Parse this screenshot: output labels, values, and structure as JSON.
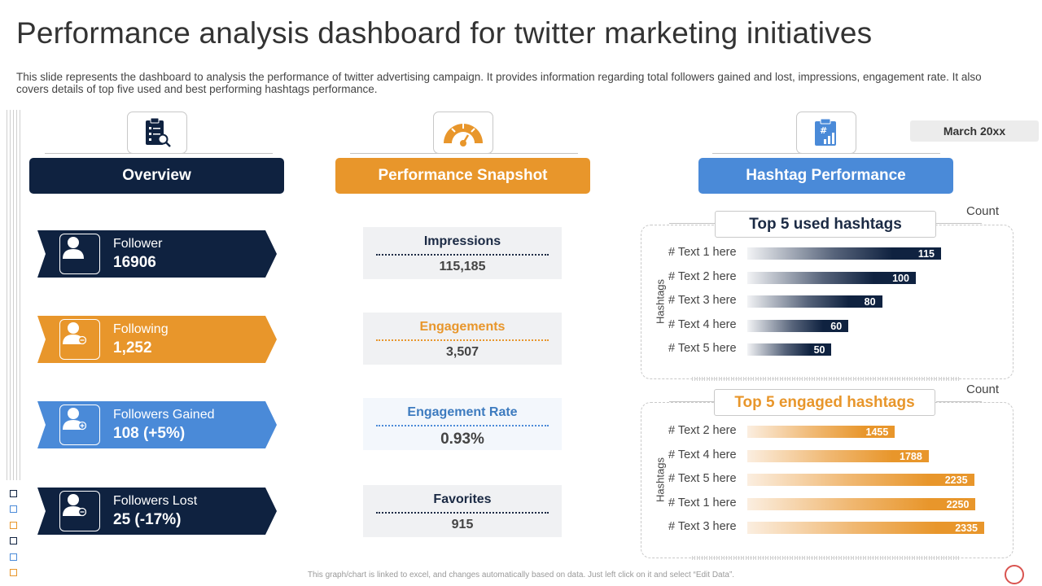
{
  "title": "Performance analysis dashboard for twitter marketing initiatives",
  "subtitle": "This slide represents the dashboard to analysis the performance of twitter advertising campaign. It provides information regarding total followers gained and lost, impressions, engagement rate. It also covers details of top five used and best performing hashtags performance.",
  "date_badge": "March 20xx",
  "sections": {
    "overview": "Overview",
    "snapshot": "Performance Snapshot",
    "hashtag": "Hashtag Performance"
  },
  "colors": {
    "navy": "#0f2240",
    "orange": "#e8962b",
    "blue": "#4a8ad8"
  },
  "overview": [
    {
      "label": "Follower",
      "value": "16906",
      "color": "#0f2240",
      "icon": "user-icon"
    },
    {
      "label": "Following",
      "value": "1,252",
      "color": "#e8962b",
      "icon": "user-minus-icon"
    },
    {
      "label": "Followers Gained",
      "value": "108 (+5%)",
      "color": "#4a8ad8",
      "icon": "user-plus-icon"
    },
    {
      "label": "Followers Lost",
      "value": "25 (-17%)",
      "color": "#0f2240",
      "icon": "user-minus-icon"
    }
  ],
  "snapshot": [
    {
      "label": "Impressions",
      "value": "115,185",
      "color": "#1b2a44",
      "line": "#1b2a44"
    },
    {
      "label": "Engagements",
      "value": "3,507",
      "color": "#e8962b",
      "line": "#e8962b"
    },
    {
      "label": "Engagement Rate",
      "value": "0.93%",
      "color": "#3d7bbf",
      "line": "#4a8ad8"
    },
    {
      "label": "Favorites",
      "value": "915",
      "color": "#1b2a44",
      "line": "#1b2a44"
    }
  ],
  "chart_data": [
    {
      "type": "bar",
      "orientation": "horizontal",
      "title": "Top 5 used hashtags",
      "ylabel": "Hashtags",
      "xlabel": "Count",
      "categories": [
        "# Text 1 here",
        "# Text 2 here",
        "# Text 3 here",
        "# Text 4 here",
        "# Text 5 here"
      ],
      "values": [
        115,
        100,
        80,
        60,
        50
      ],
      "color": "#0f2240",
      "xlim": [
        0,
        115
      ]
    },
    {
      "type": "bar",
      "orientation": "horizontal",
      "title": "Top 5 engaged hashtags",
      "ylabel": "Hashtags",
      "xlabel": "Count",
      "categories": [
        "# Text 2 here",
        "# Text 4 here",
        "# Text 5 here",
        "# Text 1 here",
        "# Text 3 here"
      ],
      "values": [
        1455,
        1788,
        2235,
        2250,
        2335
      ],
      "color": "#e8962b",
      "xlim": [
        0,
        2335
      ]
    }
  ],
  "footnote": "This graph/chart is linked to excel, and changes automatically based on data. Just left click on it and select “Edit Data”."
}
